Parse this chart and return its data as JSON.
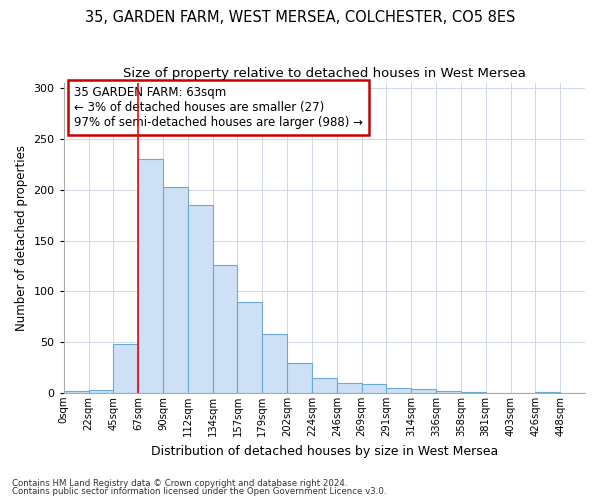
{
  "title1": "35, GARDEN FARM, WEST MERSEA, COLCHESTER, CO5 8ES",
  "title2": "Size of property relative to detached houses in West Mersea",
  "xlabel": "Distribution of detached houses by size in West Mersea",
  "ylabel": "Number of detached properties",
  "footnote1": "Contains HM Land Registry data © Crown copyright and database right 2024.",
  "footnote2": "Contains public sector information licensed under the Open Government Licence v3.0.",
  "annotation_title": "35 GARDEN FARM: 63sqm",
  "annotation_line1": "← 3% of detached houses are smaller (27)",
  "annotation_line2": "97% of semi-detached houses are larger (988) →",
  "bar_color": "#cde0f5",
  "bar_edge_color": "#6aaad4",
  "red_line_x": 3,
  "categories": [
    "0sqm",
    "22sqm",
    "45sqm",
    "67sqm",
    "90sqm",
    "112sqm",
    "134sqm",
    "157sqm",
    "179sqm",
    "202sqm",
    "224sqm",
    "246sqm",
    "269sqm",
    "291sqm",
    "314sqm",
    "336sqm",
    "358sqm",
    "381sqm",
    "403sqm",
    "426sqm",
    "448sqm"
  ],
  "values": [
    2,
    3,
    48,
    230,
    203,
    185,
    126,
    90,
    58,
    30,
    15,
    10,
    9,
    5,
    4,
    2,
    1,
    0,
    0,
    1,
    0
  ],
  "ylim": [
    0,
    305
  ],
  "yticks": [
    0,
    50,
    100,
    150,
    200,
    250,
    300
  ],
  "background_color": "#ffffff",
  "grid_color": "#d0d8e8",
  "title_fontsize": 10.5,
  "subtitle_fontsize": 9.5,
  "annotation_box_color": "#ffffff",
  "annotation_box_edge": "#cc0000",
  "annotation_fontsize": 8.5
}
